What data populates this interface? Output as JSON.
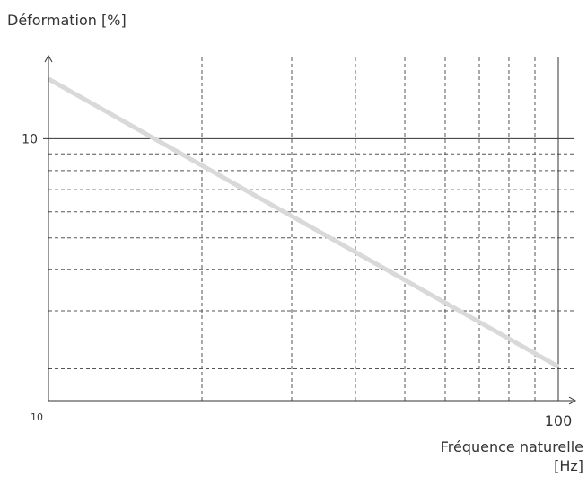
{
  "chart_data": {
    "type": "line",
    "title": "",
    "ylabel": "Déformation [%]",
    "xlabel_line1": "Fréquence naturelle",
    "xlabel_line2": "[Hz]",
    "x_scale": "log",
    "y_scale": "log",
    "xlim": [
      10,
      100
    ],
    "ylim": [
      1.6,
      17
    ],
    "x_ticks": [
      {
        "value": 10,
        "label": "10"
      },
      {
        "value": 100,
        "label": "100"
      }
    ],
    "y_ticks": [
      {
        "value": 10,
        "label": "10"
      }
    ],
    "x_minor_grid": [
      20,
      30,
      40,
      50,
      60,
      70,
      80,
      90
    ],
    "y_minor_grid": [
      9,
      8,
      7,
      6,
      5,
      4,
      3,
      2
    ],
    "grid": true,
    "series": [
      {
        "color": "#d9d9d9",
        "x": [
          10,
          100
        ],
        "y": [
          15.2,
          2.03
        ]
      }
    ],
    "colors": {
      "axis": "#333333",
      "grid_major": "#333333",
      "grid_minor": "#555555",
      "series": "#d9d9d9"
    }
  }
}
